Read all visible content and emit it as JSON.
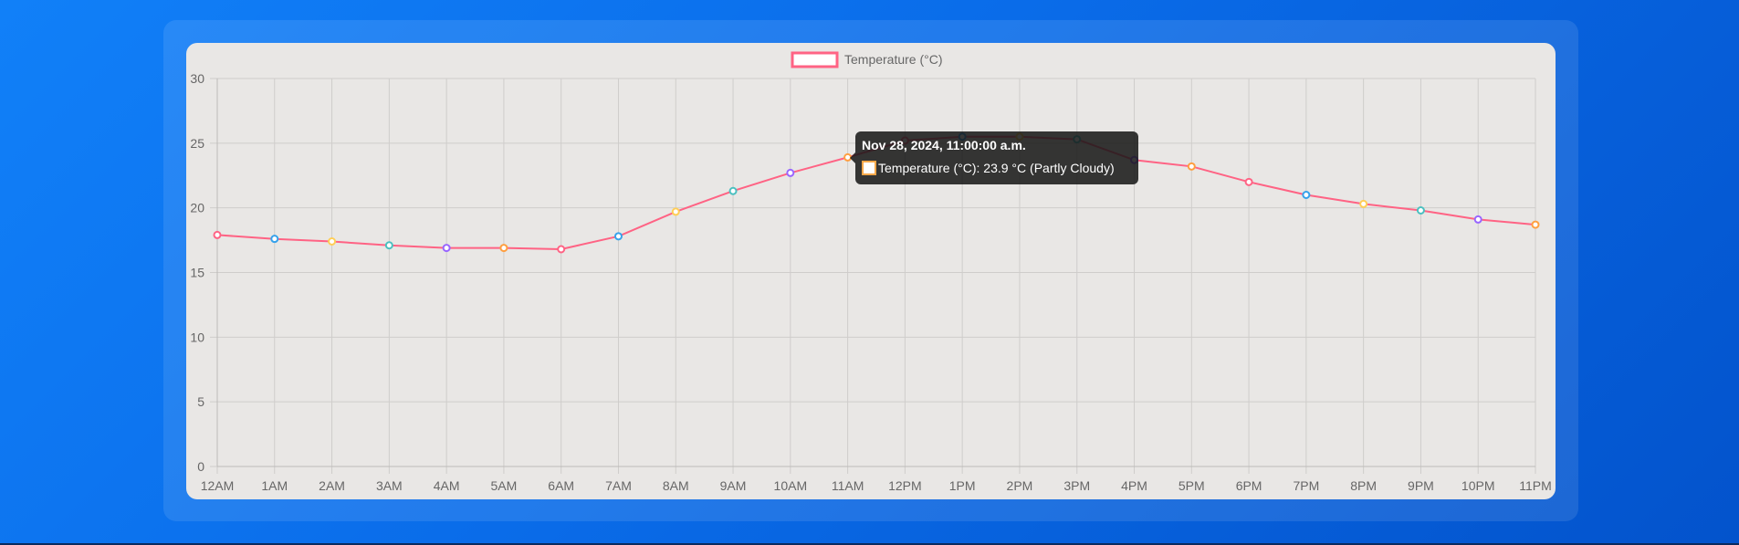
{
  "chart_data": {
    "type": "line",
    "legend": {
      "label": "Temperature (°C)",
      "placement": "top-center"
    },
    "categories": [
      "12AM",
      "1AM",
      "2AM",
      "3AM",
      "4AM",
      "5AM",
      "6AM",
      "7AM",
      "8AM",
      "9AM",
      "10AM",
      "11AM",
      "12PM",
      "1PM",
      "2PM",
      "3PM",
      "4PM",
      "5PM",
      "6PM",
      "7PM",
      "8PM",
      "9PM",
      "10PM",
      "11PM"
    ],
    "series": [
      {
        "name": "Temperature (°C)",
        "color": "#ff6384",
        "values": [
          17.9,
          17.6,
          17.4,
          17.1,
          16.9,
          16.9,
          16.8,
          17.8,
          19.7,
          21.3,
          22.7,
          23.9,
          25.2,
          25.5,
          25.5,
          25.3,
          23.7,
          23.2,
          22.0,
          21.0,
          20.3,
          19.8,
          19.1,
          18.7
        ],
        "point_colors": [
          "#ff6384",
          "#36a2eb",
          "#ffce56",
          "#4bc0c0",
          "#9966ff",
          "#ff9f40",
          "#ff6384",
          "#36a2eb",
          "#ffce56",
          "#4bc0c0",
          "#9966ff",
          "#ff9f40",
          "#ff6384",
          "#36a2eb",
          "#ffce56",
          "#4bc0c0",
          "#9966ff",
          "#ff9f40",
          "#ff6384",
          "#36a2eb",
          "#ffce56",
          "#4bc0c0",
          "#9966ff",
          "#ff9f40"
        ]
      }
    ],
    "y_ticks": [
      "0",
      "5",
      "10",
      "15",
      "20",
      "25",
      "30"
    ],
    "ylim": [
      0,
      30
    ],
    "grid": true
  },
  "tooltip": {
    "title": "Nov 28, 2024, 11:00:00 a.m.",
    "label": "Temperature (°C): 23.9 °C (Partly Cloudy)",
    "swatch_color": "#f7a84a"
  }
}
